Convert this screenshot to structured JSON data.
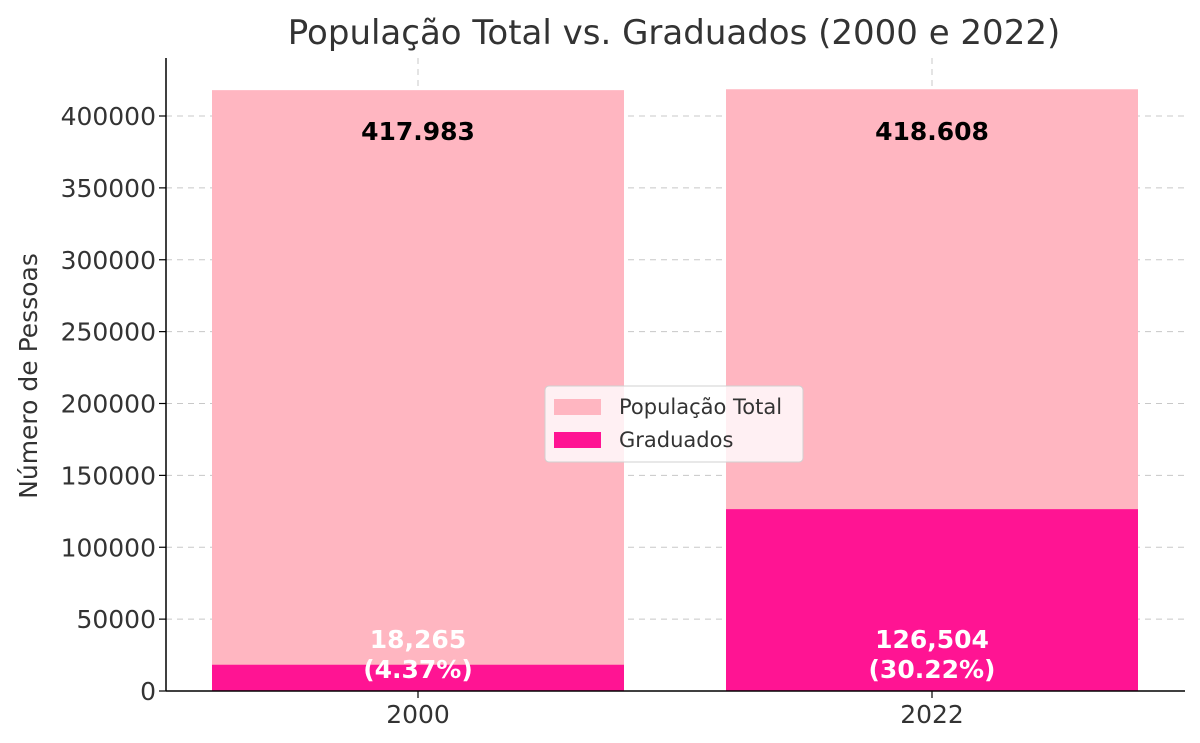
{
  "chart_data": {
    "type": "bar",
    "title": "População Total vs. Graduados (2000 e 2022)",
    "ylabel": "Número de Pessoas",
    "xlabel": "",
    "categories": [
      "2000",
      "2022"
    ],
    "ylim": [
      0,
      420000
    ],
    "yticks": [
      0,
      50000,
      100000,
      150000,
      200000,
      250000,
      300000,
      350000,
      400000
    ],
    "ytick_labels": [
      "0",
      "50000",
      "100000",
      "150000",
      "200000",
      "250000",
      "300000",
      "350000",
      "400000"
    ],
    "grid": true,
    "legend_position": "center",
    "series": [
      {
        "name": "População Total",
        "values": [
          417983,
          418608
        ],
        "labels": [
          "417.983",
          "418.608"
        ],
        "color": "#ffb6c1"
      },
      {
        "name": "Graduados",
        "values": [
          18265,
          126504
        ],
        "labels": [
          "18,265\n(4.37%)",
          "126,504\n(30.22%)"
        ],
        "color": "#ff1493"
      }
    ]
  }
}
